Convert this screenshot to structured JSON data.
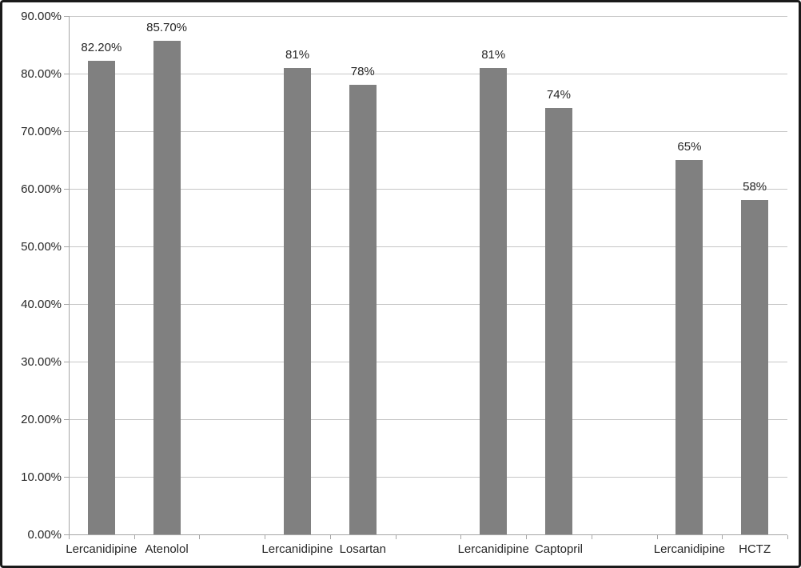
{
  "chart_data": {
    "type": "bar",
    "title": "",
    "xlabel": "",
    "ylabel": "",
    "legend": "none",
    "grid": "horizontal",
    "bar_color": "#808080",
    "gridline_color": "#c6c6c6",
    "axis_color": "#a6a6a6",
    "text_color": "#262626",
    "ylim": [
      0,
      90
    ],
    "y_tick_step": 10,
    "y_tick_labels": [
      "0.00%",
      "10.00%",
      "20.00%",
      "30.00%",
      "40.00%",
      "50.00%",
      "60.00%",
      "70.00%",
      "80.00%",
      "90.00%"
    ],
    "total_slots": 11,
    "bars": [
      {
        "category": "Lercanidipine",
        "value": 82.2,
        "label": "82.20%",
        "slot": 0
      },
      {
        "category": "Atenolol",
        "value": 85.7,
        "label": "85.70%",
        "slot": 1
      },
      {
        "category": "Lercanidipine",
        "value": 81,
        "label": "81%",
        "slot": 3
      },
      {
        "category": "Losartan",
        "value": 78,
        "label": "78%",
        "slot": 4
      },
      {
        "category": "Lercanidipine",
        "value": 81,
        "label": "81%",
        "slot": 6
      },
      {
        "category": "Captopril",
        "value": 74,
        "label": "74%",
        "slot": 7
      },
      {
        "category": "Lercanidipine",
        "value": 65,
        "label": "65%",
        "slot": 9
      },
      {
        "category": "HCTZ",
        "value": 58,
        "label": "58%",
        "slot": 10
      }
    ]
  }
}
